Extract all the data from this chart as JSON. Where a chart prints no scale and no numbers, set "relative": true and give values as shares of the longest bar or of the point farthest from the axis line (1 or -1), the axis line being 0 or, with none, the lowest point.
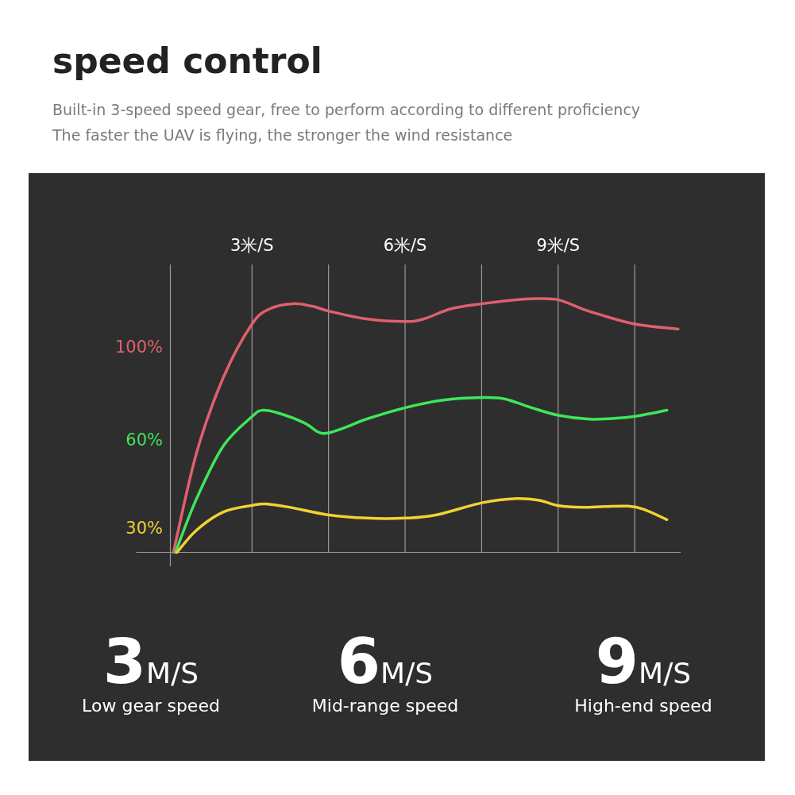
{
  "chart_data": {
    "type": "line",
    "title": "speed control",
    "subtitle": "Built-in 3-speed speed gear, free to perform according to different proficiency",
    "annotations": [
      "The faster the UAV is flying, the stronger the wind resistance",
      "3M/S",
      "Low gear speed",
      "6M/S",
      "Mid-range speed",
      "9M/S",
      "High-end speed"
    ],
    "relative": true,
    "grid": "x",
    "xlim": [
      1.4,
      11.4
    ],
    "xticks": [
      {
        "value": 3,
        "label": "3米/S"
      },
      {
        "value": 4.5,
        "label": null
      },
      {
        "value": 6,
        "label": "6米/S"
      },
      {
        "value": 7.5,
        "label": null
      },
      {
        "value": 9,
        "label": "9米/S"
      },
      {
        "value": 10.5,
        "label": null
      }
    ],
    "series": [
      {
        "name": "100%",
        "color": "#e0606e",
        "x": [
          1.46,
          1.91,
          2.44,
          3.0,
          3.35,
          3.8,
          4.18,
          4.52,
          5.24,
          6.0,
          6.37,
          6.9,
          7.52,
          8.26,
          8.63,
          9.01,
          9.47,
          9.77,
          10.5,
          11.35
        ],
        "values": [
          0,
          0.39,
          0.69,
          0.9,
          0.96,
          0.98,
          0.97,
          0.95,
          0.92,
          0.91,
          0.92,
          0.96,
          0.98,
          0.997,
          1.0,
          0.995,
          0.96,
          0.94,
          0.9,
          0.88
        ]
      },
      {
        "name": "60%",
        "color": "#3ee65a",
        "x": [
          1.5,
          1.91,
          2.44,
          3.0,
          3.2,
          3.5,
          4.03,
          4.29,
          4.48,
          4.86,
          5.24,
          6.0,
          6.75,
          7.52,
          7.95,
          8.48,
          9.01,
          9.62,
          10.15,
          10.5,
          11.13
        ],
        "values": [
          0,
          0.21,
          0.42,
          0.535,
          0.56,
          0.55,
          0.51,
          0.475,
          0.47,
          0.495,
          0.525,
          0.57,
          0.6,
          0.61,
          0.605,
          0.57,
          0.54,
          0.525,
          0.529,
          0.536,
          0.56
        ]
      },
      {
        "name": "30%",
        "color": "#f2d232",
        "x": [
          1.53,
          1.91,
          2.44,
          3.0,
          3.27,
          3.73,
          4.52,
          5.24,
          6.0,
          6.6,
          7.52,
          8.18,
          8.63,
          9.01,
          9.47,
          9.92,
          10.37,
          10.67,
          11.13
        ],
        "values": [
          0,
          0.087,
          0.159,
          0.185,
          0.191,
          0.178,
          0.147,
          0.135,
          0.135,
          0.147,
          0.196,
          0.212,
          0.205,
          0.184,
          0.178,
          0.181,
          0.182,
          0.17,
          0.129
        ]
      }
    ]
  }
}
